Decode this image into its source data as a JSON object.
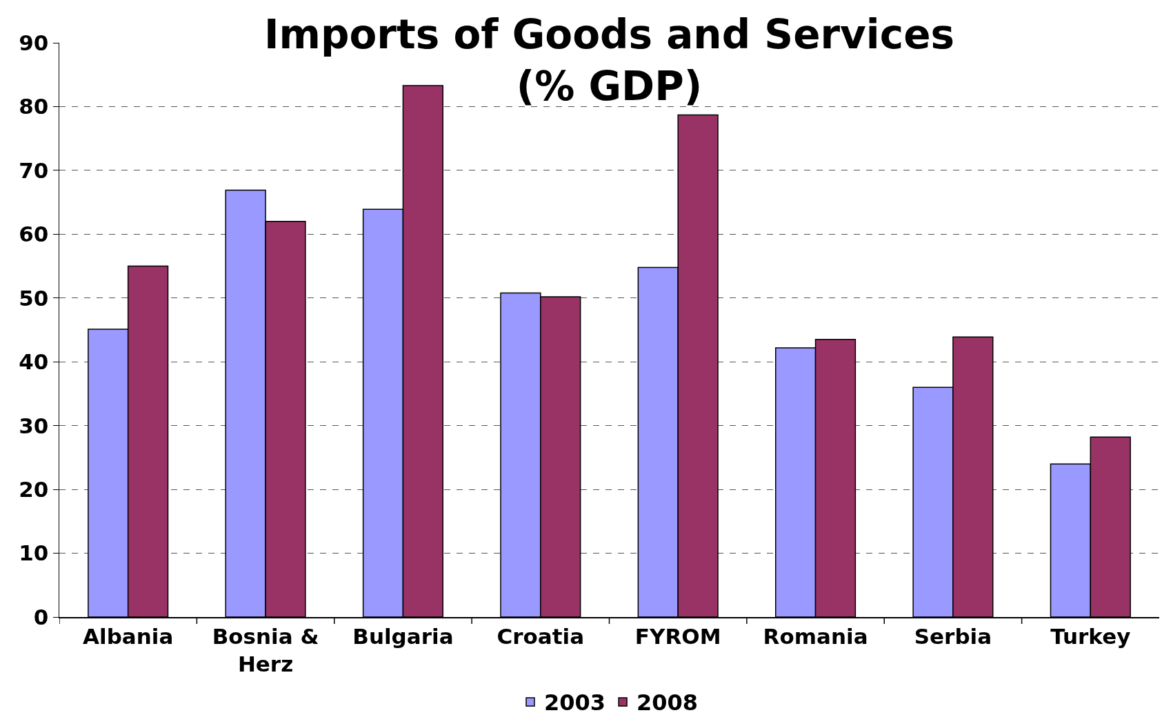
{
  "chart_data": {
    "type": "bar",
    "title": "Imports of Goods and Services\n(% GDP)",
    "categories": [
      "Albania",
      "Bosnia & Herz",
      "Bulgaria",
      "Croatia",
      "FYROM",
      "Romania",
      "Serbia",
      "Turkey"
    ],
    "series": [
      {
        "name": "2003",
        "color": "#9999ff",
        "values": [
          45.1,
          66.9,
          63.9,
          50.8,
          54.8,
          42.2,
          36.0,
          24.0
        ]
      },
      {
        "name": "2008",
        "color": "#993366",
        "values": [
          55.0,
          62.0,
          83.3,
          50.2,
          78.7,
          43.5,
          43.9,
          28.2
        ]
      }
    ],
    "ylim": [
      0,
      90
    ],
    "yticks": [
      0,
      10,
      20,
      30,
      40,
      50,
      60,
      70,
      80,
      90
    ],
    "grid": "y",
    "legend": "bottom"
  }
}
